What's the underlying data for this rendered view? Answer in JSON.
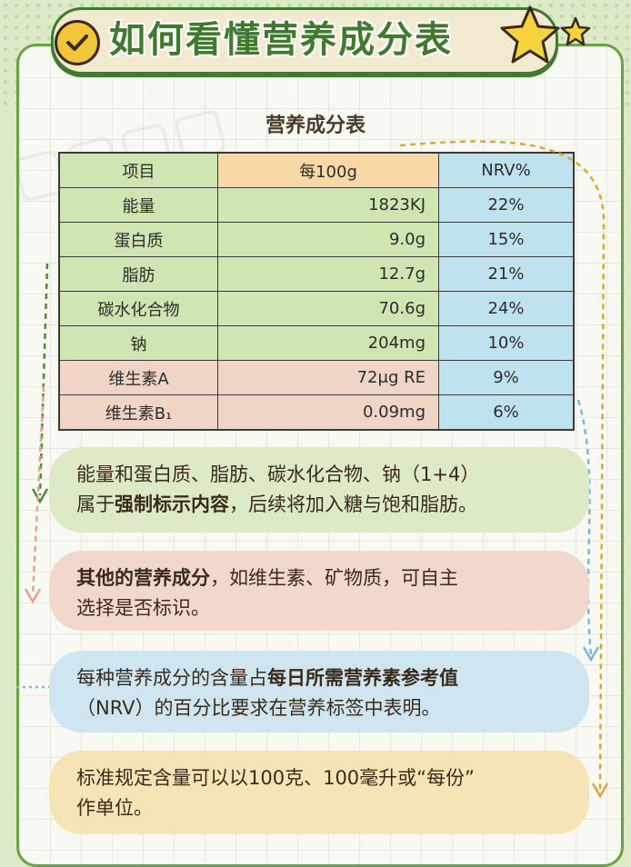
{
  "title": "如何看懂营养成分表",
  "table": {
    "title": "营养成分表",
    "header": {
      "name": "项目",
      "value": "每100g",
      "nrv": "NRV%"
    },
    "rows": [
      {
        "name": "能量",
        "value": "1823KJ",
        "nrv": "22%"
      },
      {
        "name": "蛋白质",
        "value": "9.0g",
        "nrv": "15%"
      },
      {
        "name": "脂肪",
        "value": "12.7g",
        "nrv": "21%"
      },
      {
        "name": "碳水化合物",
        "value": "70.6g",
        "nrv": "24%"
      },
      {
        "name": "钠",
        "value": "204mg",
        "nrv": "10%"
      },
      {
        "name": "维生素A",
        "value": "72μg RE",
        "nrv": "9%"
      },
      {
        "name": "维生素B₁",
        "value": "0.09mg",
        "nrv": "6%"
      }
    ]
  },
  "notes": {
    "n1": {
      "line1": "能量和蛋白质、脂肪、碳水化合物、钠（1+4）",
      "pre": "属于",
      "bold": "强制标示内容",
      "post": "，后续将加入糖与饱和脂肪。"
    },
    "n2": {
      "bold": "其他的营养成分",
      "post": "，如维生素、矿物质，可自主",
      "line2": "选择是否标识。"
    },
    "n3": {
      "pre": "每种营养成分的含量占",
      "bold": "每日所需营养素参考值",
      "line2": "（NRV）的百分比要求在营养标签中表明。"
    },
    "n4": {
      "line1": "标准规定含量可以以100克、100毫升或“每份”",
      "line2": "作单位。"
    }
  },
  "colors": {
    "green": "#3f7a2e",
    "table_green": "#cfe6b2",
    "table_pink": "#f0d4c6",
    "table_blue": "#bfe2ef",
    "table_orange": "#f6d9a6"
  },
  "icons": [
    "check-icon",
    "star-icon"
  ]
}
